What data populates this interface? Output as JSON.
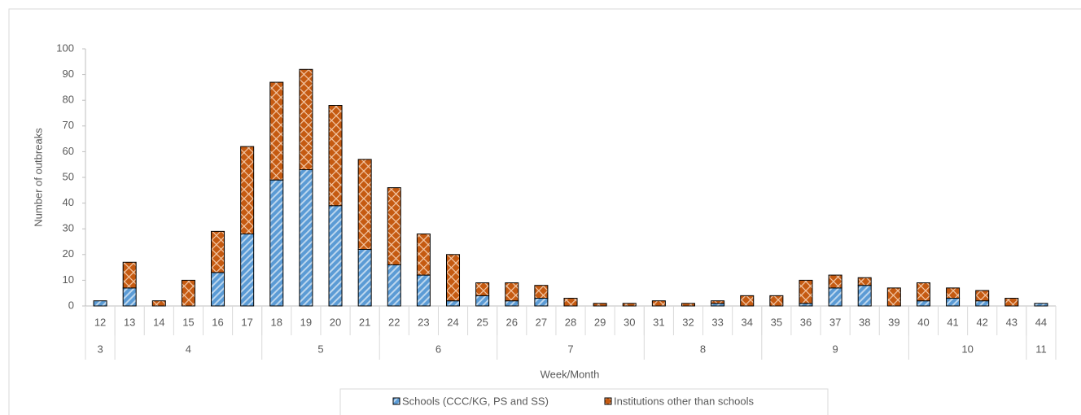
{
  "chart_data": {
    "type": "stacked-bar",
    "y_label": "Number of outbreaks",
    "x_label": "Week/Month",
    "categories": [
      "12",
      "13",
      "14",
      "15",
      "16",
      "17",
      "18",
      "19",
      "20",
      "21",
      "22",
      "23",
      "24",
      "25",
      "26",
      "27",
      "28",
      "29",
      "30",
      "31",
      "32",
      "33",
      "34",
      "35",
      "36",
      "37",
      "38",
      "39",
      "40",
      "41",
      "42",
      "43",
      "44"
    ],
    "x_groups": [
      {
        "label": "3",
        "span": 1
      },
      {
        "label": "4",
        "span": 5
      },
      {
        "label": "5",
        "span": 4
      },
      {
        "label": "6",
        "span": 4
      },
      {
        "label": "7",
        "span": 5
      },
      {
        "label": "8",
        "span": 4
      },
      {
        "label": "9",
        "span": 5
      },
      {
        "label": "10",
        "span": 4
      },
      {
        "label": "11",
        "span": 1
      }
    ],
    "series": [
      {
        "name": "Schools (CCC/KG, PS and SS)",
        "color": "#5b9bd5",
        "values": [
          2,
          7,
          0,
          0,
          13,
          28,
          49,
          53,
          39,
          22,
          16,
          12,
          2,
          4,
          2,
          3,
          0,
          0,
          0,
          0,
          0,
          1,
          0,
          0,
          1,
          7,
          8,
          0,
          2,
          3,
          2,
          0,
          1
        ]
      },
      {
        "name": "Institutions other than schools",
        "color": "#c55a11",
        "values": [
          0,
          10,
          2,
          10,
          16,
          34,
          38,
          39,
          39,
          35,
          30,
          16,
          18,
          5,
          7,
          5,
          3,
          1,
          1,
          2,
          1,
          1,
          4,
          4,
          9,
          5,
          3,
          7,
          7,
          4,
          4,
          3,
          0
        ]
      }
    ],
    "ylim": [
      0,
      100
    ],
    "yticks": [
      0,
      10,
      20,
      30,
      40,
      50,
      60,
      70,
      80,
      90,
      100
    ],
    "legend": "bottom"
  }
}
